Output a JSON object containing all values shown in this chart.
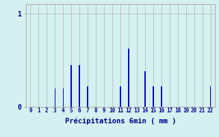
{
  "categories": [
    0,
    1,
    2,
    3,
    4,
    5,
    6,
    7,
    8,
    9,
    10,
    11,
    12,
    13,
    14,
    15,
    16,
    17,
    18,
    19,
    20,
    21,
    22
  ],
  "values": [
    0,
    0,
    0,
    0.2,
    0.2,
    0.45,
    0.45,
    0.22,
    0,
    0,
    0,
    0.22,
    0.62,
    0.0,
    0.38,
    0.22,
    0.22,
    0,
    0,
    0,
    0,
    0,
    0.22
  ],
  "bar_color": "#0000cc",
  "background_color": "#d4f0f0",
  "grid_color": "#b0b0b0",
  "xlabel": "Précipitations 6min ( mm )",
  "xlabel_color": "#00008b",
  "ylim": [
    0,
    1.1
  ],
  "yticks": [
    0,
    1
  ],
  "xlim": [
    -0.5,
    22.5
  ],
  "bar_width": 0.12
}
